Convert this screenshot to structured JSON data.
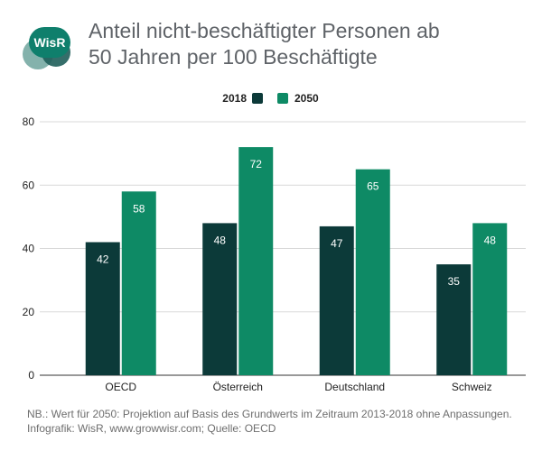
{
  "header": {
    "logo_text": "WisR",
    "title_line1": "Anteil nicht-beschäftigter Personen ab",
    "title_line2": "50 Jahren per 100 Beschäftigte"
  },
  "colors": {
    "series_2018": "#0c3a39",
    "series_2050": "#0e8a65",
    "grid": "#d9d9d9",
    "axis_text": "#222222",
    "logo_dark": "#1f5e5a",
    "logo_mid": "#0f7f6c",
    "logo_light": "#6fa59e"
  },
  "chart_data": {
    "type": "bar",
    "title": "Anteil nicht-beschäftigter Personen ab 50 Jahren per 100 Beschäftigte",
    "categories": [
      "OECD",
      "Österreich",
      "Deutschland",
      "Schweiz"
    ],
    "series": [
      {
        "name": "2018",
        "values": [
          42,
          48,
          47,
          35
        ]
      },
      {
        "name": "2050",
        "values": [
          58,
          72,
          65,
          48
        ]
      }
    ],
    "ylim": [
      0,
      80
    ],
    "yticks": [
      0,
      20,
      40,
      60,
      80
    ],
    "xlabel": "",
    "ylabel": "",
    "grid": true,
    "legend": "top-center",
    "data_labels": true
  },
  "footer": {
    "line1": "NB.: Wert für 2050: Projektion auf Basis des Grundwerts im Zeitraum 2013-2018 ohne Anpassungen.",
    "line2": "Infografik: WisR, www.growwisr.com; Quelle: OECD"
  }
}
